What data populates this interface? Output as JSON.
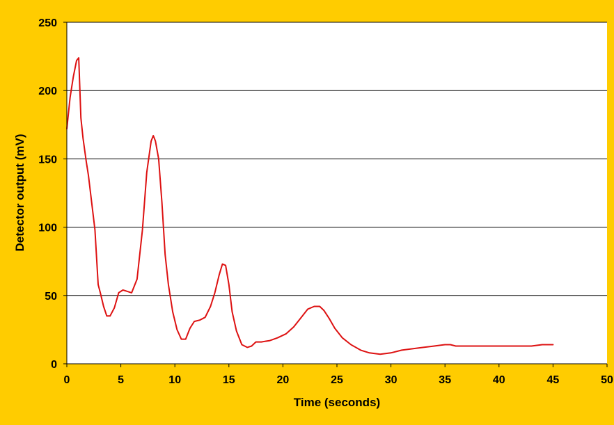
{
  "chart_data": {
    "type": "line",
    "title": "",
    "xlabel": "Time (seconds)",
    "ylabel": "Detector output (mV)",
    "xlim": [
      0,
      50
    ],
    "ylim": [
      0,
      250
    ],
    "xticks": [
      0,
      5,
      10,
      15,
      20,
      25,
      30,
      35,
      40,
      45,
      50
    ],
    "yticks": [
      0,
      50,
      100,
      150,
      200,
      250
    ],
    "grid": "horizontal",
    "legend": "none",
    "colors": {
      "line": "#DD1111",
      "background": "#FFCC00",
      "plot": "#FFFFFF",
      "grid": "#000000"
    },
    "series": [
      {
        "x": [
          0,
          0.3,
          0.6,
          0.9,
          1.1,
          1.3,
          1.5,
          1.8,
          2.0,
          2.3,
          2.6,
          2.9,
          3.1,
          3.4,
          3.7,
          4.0,
          4.4,
          4.8,
          5.2,
          5.6,
          6.0,
          6.5,
          7.0,
          7.4,
          7.8,
          8.0,
          8.2,
          8.5,
          8.8,
          9.1,
          9.4,
          9.8,
          10.2,
          10.6,
          11.0,
          11.4,
          11.8,
          12.3,
          12.8,
          13.3,
          13.7,
          14.1,
          14.4,
          14.7,
          15.0,
          15.3,
          15.7,
          16.2,
          16.7,
          17.1,
          17.5,
          18.0,
          18.8,
          19.5,
          20.3,
          21.0,
          21.7,
          22.3,
          22.9,
          23.4,
          23.8,
          24.3,
          24.8,
          25.5,
          26.3,
          27.2,
          28.0,
          29.0,
          30.0,
          31.0,
          32.0,
          33.0,
          34.0,
          35.0,
          35.5,
          36.0,
          37.0,
          38.0,
          39.0,
          40.0,
          41.0,
          42.0,
          43.0,
          44.0,
          45.0
        ],
        "values": [
          172,
          195,
          210,
          222,
          224,
          180,
          165,
          148,
          138,
          118,
          98,
          58,
          52,
          42,
          35,
          35,
          41,
          52,
          54,
          53,
          52,
          62,
          98,
          140,
          163,
          167,
          163,
          150,
          118,
          80,
          58,
          38,
          25,
          18,
          18,
          26,
          31,
          32,
          34,
          42,
          52,
          65,
          73,
          72,
          58,
          38,
          24,
          14,
          12,
          13,
          16,
          16,
          17,
          19,
          22,
          27,
          34,
          40,
          42,
          42,
          39,
          33,
          26,
          19,
          14,
          10,
          8,
          7,
          8,
          10,
          11,
          12,
          13,
          14,
          14,
          13,
          13,
          13,
          13,
          13,
          13,
          13,
          13,
          14,
          14
        ]
      }
    ]
  }
}
